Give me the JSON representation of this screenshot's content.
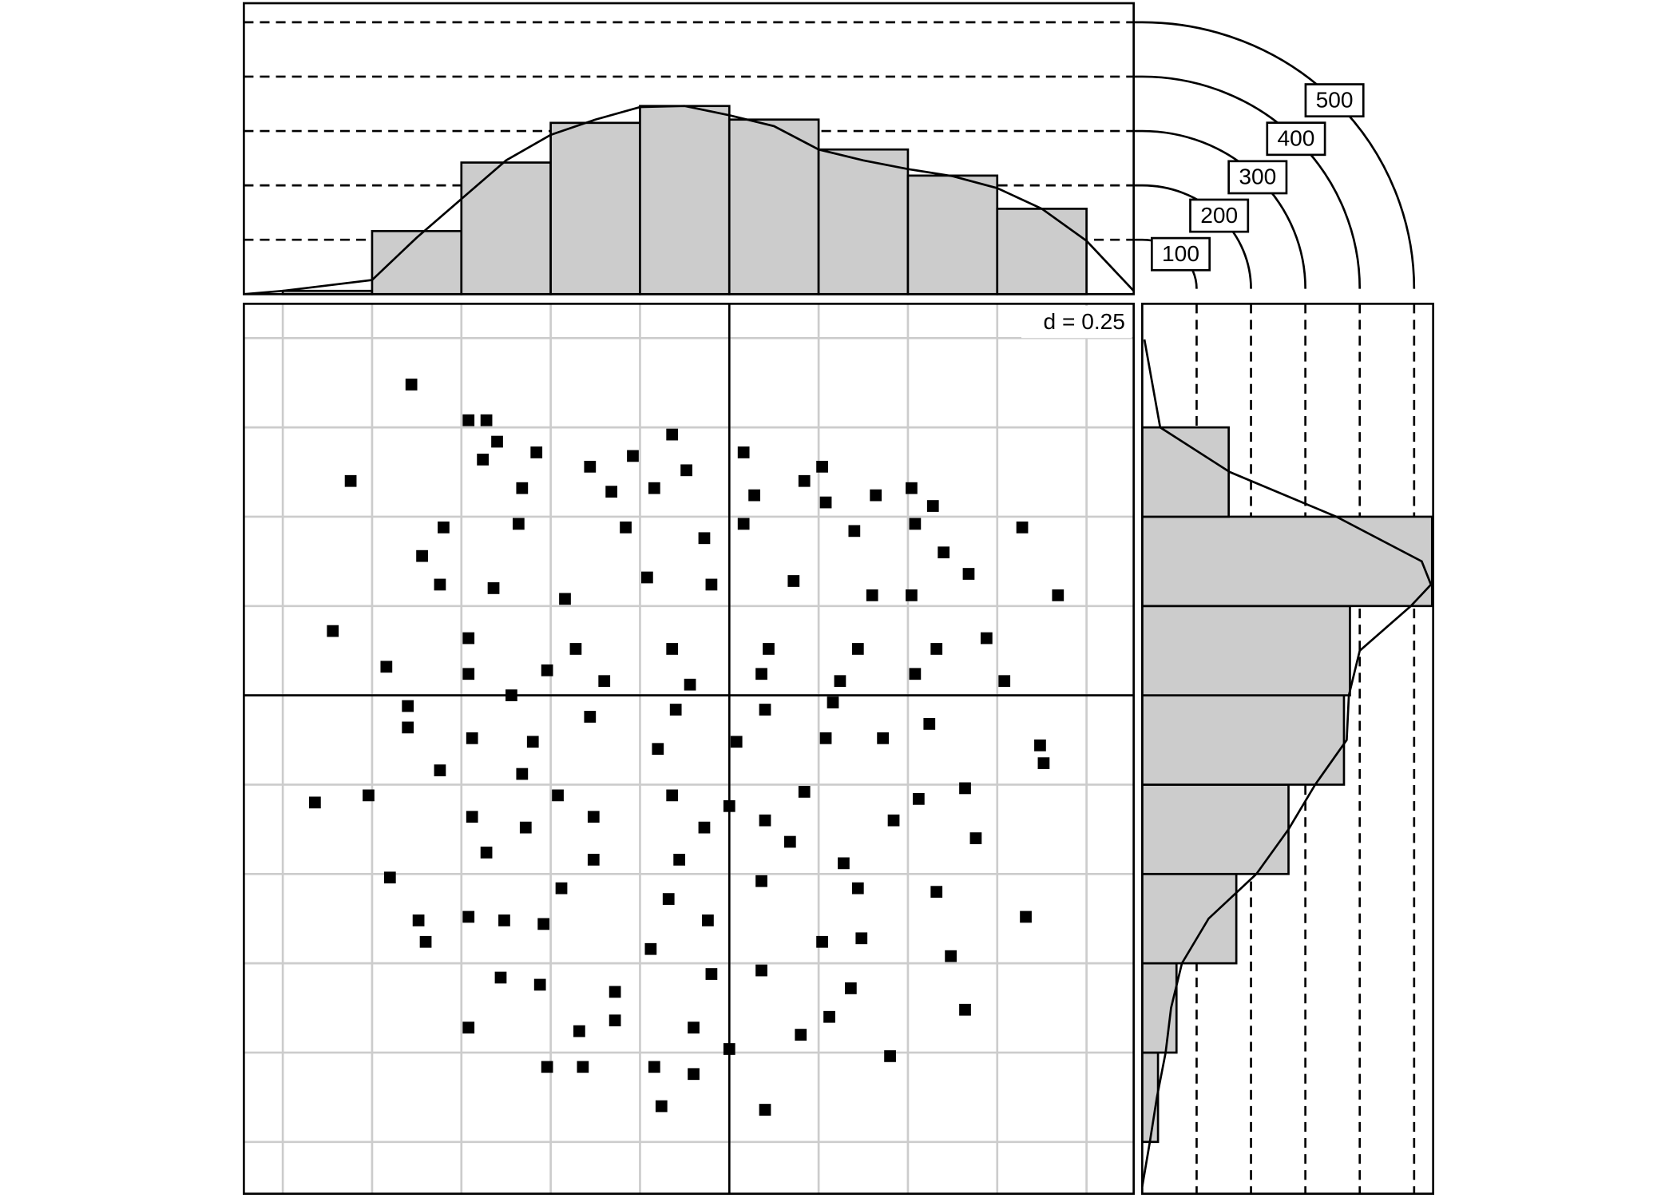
{
  "chart_data": [
    {
      "type": "scatter",
      "annotation": "d = 0.25",
      "color": "#000000",
      "xlim": [
        -1.359,
        1.132
      ],
      "ylim": [
        -1.395,
        1.096
      ],
      "xticks": [
        -1.25,
        -1,
        -0.75,
        -0.5,
        -0.25,
        0,
        0.25,
        0.5,
        0.75,
        1
      ],
      "yticks": [
        -1.25,
        -1,
        -0.75,
        -0.5,
        -0.25,
        0,
        0.25,
        0.5,
        0.75,
        1
      ],
      "grid": true,
      "x": [
        -0.89,
        -0.73,
        -0.68,
        -0.65,
        -0.16,
        0.04,
        -1.06,
        -0.69,
        -0.54,
        -0.39,
        -0.27,
        -0.12,
        0.26,
        0.21,
        0.51,
        0.41,
        0.57,
        0.82,
        0.92,
        0.52,
        0.07,
        -0.21,
        -0.33,
        -0.58,
        -0.8,
        -0.86,
        -0.59,
        -0.29,
        -0.07,
        0.04,
        0.27,
        0.35,
        0.6,
        0.67,
        -0.81,
        -0.66,
        -0.46,
        -0.23,
        -0.05,
        0.18,
        0.4,
        0.51,
        -1.11,
        -0.73,
        -0.43,
        -0.16,
        0.11,
        0.36,
        0.58,
        0.72,
        -0.96,
        -0.73,
        -0.51,
        -0.35,
        -0.11,
        0.09,
        0.31,
        0.52,
        0.77,
        -0.9,
        -0.61,
        -0.39,
        -0.15,
        0.1,
        0.29,
        0.56,
        0.87,
        0.88,
        -0.9,
        -0.72,
        -0.55,
        -0.2,
        0.02,
        0.27,
        0.43,
        -1.16,
        -1.01,
        -0.81,
        -0.58,
        -0.48,
        -0.16,
        0,
        0.21,
        0.53,
        0.66,
        -0.72,
        -0.57,
        -0.38,
        -0.07,
        0.1,
        0.46,
        0.69,
        -0.95,
        -0.68,
        -0.38,
        -0.14,
        0.17,
        0.32,
        0.58,
        0.83,
        -0.73,
        -0.47,
        -0.17,
        0.09,
        0.36,
        -0.87,
        -0.63,
        -0.52,
        -0.22,
        -0.06,
        0.26,
        0.37,
        0.62,
        -0.85,
        -0.64,
        -0.53,
        -0.32,
        -0.05,
        0.09,
        0.34,
        0.66,
        -0.73,
        -0.42,
        -0.32,
        -0.1,
        0.2,
        0.28,
        -0.51,
        -0.41,
        -0.21,
        -0.1,
        0.45,
        -0.19,
        0.1,
        0
      ],
      "y": [
        0.87,
        0.77,
        0.77,
        0.71,
        0.73,
        0.68,
        0.6,
        0.66,
        0.68,
        0.64,
        0.67,
        0.63,
        0.64,
        0.6,
        0.58,
        0.56,
        0.53,
        0.47,
        0.28,
        0.48,
        0.56,
        0.58,
        0.57,
        0.58,
        0.47,
        0.39,
        0.48,
        0.47,
        0.44,
        0.48,
        0.54,
        0.46,
        0.4,
        0.34,
        0.31,
        0.3,
        0.27,
        0.33,
        0.31,
        0.32,
        0.28,
        0.28,
        0.18,
        0.16,
        0.13,
        0.13,
        0.13,
        0.13,
        0.13,
        0.16,
        0.08,
        0.06,
        0.07,
        0.04,
        0.03,
        0.06,
        0.04,
        0.06,
        0.04,
        -0.03,
        0,
        -0.06,
        -0.04,
        -0.04,
        -0.02,
        -0.08,
        -0.14,
        -0.19,
        -0.09,
        -0.12,
        -0.13,
        -0.15,
        -0.13,
        -0.12,
        -0.12,
        -0.3,
        -0.28,
        -0.21,
        -0.22,
        -0.28,
        -0.28,
        -0.31,
        -0.27,
        -0.29,
        -0.26,
        -0.34,
        -0.37,
        -0.34,
        -0.37,
        -0.35,
        -0.35,
        -0.4,
        -0.51,
        -0.44,
        -0.46,
        -0.46,
        -0.41,
        -0.47,
        -0.55,
        -0.62,
        -0.62,
        -0.54,
        -0.57,
        -0.52,
        -0.54,
        -0.63,
        -0.63,
        -0.64,
        -0.71,
        -0.63,
        -0.69,
        -0.68,
        -0.73,
        -0.69,
        -0.79,
        -0.81,
        -0.83,
        -0.78,
        -0.77,
        -0.82,
        -0.88,
        -0.93,
        -0.94,
        -0.91,
        -0.93,
        -0.95,
        -0.9,
        -1.04,
        -1.04,
        -1.04,
        -1.06,
        -1.01,
        -1.15,
        -1.16,
        -0.99
      ]
    },
    {
      "type": "histogram",
      "orientation": "vertical",
      "color": "#cccccc",
      "bins": [
        -1.25,
        -1,
        -0.75,
        -0.5,
        -0.25,
        0,
        0.25,
        0.5,
        0.75,
        1
      ],
      "counts": [
        6,
        116,
        242,
        315,
        346,
        321,
        266,
        218,
        157
      ],
      "density_x": [
        -1.359,
        -1.25,
        -1,
        -0.875,
        -0.75,
        -0.625,
        -0.5,
        -0.375,
        -0.25,
        -0.125,
        0,
        0.125,
        0.25,
        0.375,
        0.5,
        0.625,
        0.75,
        0.875,
        1,
        1.132
      ],
      "density_y": [
        0,
        6,
        26,
        104,
        175,
        246,
        293,
        321,
        344,
        346,
        329,
        309,
        266,
        246,
        230,
        217,
        195,
        157,
        98,
        6
      ],
      "xlim": [
        -1.359,
        1.132
      ],
      "ylim": [
        0,
        535
      ],
      "yticks": [
        100,
        200,
        300,
        400,
        500
      ]
    },
    {
      "type": "histogram",
      "orientation": "horizontal",
      "color": "#cccccc",
      "bins": [
        -1.25,
        -1,
        -0.75,
        -0.5,
        -0.25,
        0,
        0.25,
        0.5,
        0.75
      ],
      "counts": [
        29,
        63,
        173,
        269,
        371,
        382,
        533,
        159
      ],
      "density_y": [
        -1.375,
        -1.25,
        -1.125,
        -1,
        -0.875,
        -0.75,
        -0.625,
        -0.5,
        -0.375,
        -0.25,
        -0.125,
        0,
        0.125,
        0.25,
        0.31,
        0.375,
        0.5,
        0.625,
        0.75,
        0.996
      ],
      "density_x": [
        0,
        14,
        27,
        43,
        53,
        73,
        122,
        210,
        269,
        318,
        376,
        380,
        400,
        494,
        531,
        514,
        357,
        161,
        33,
        4
      ],
      "ylim": [
        -1.395,
        1.096
      ],
      "xlim": [
        0,
        535
      ]
    }
  ]
}
